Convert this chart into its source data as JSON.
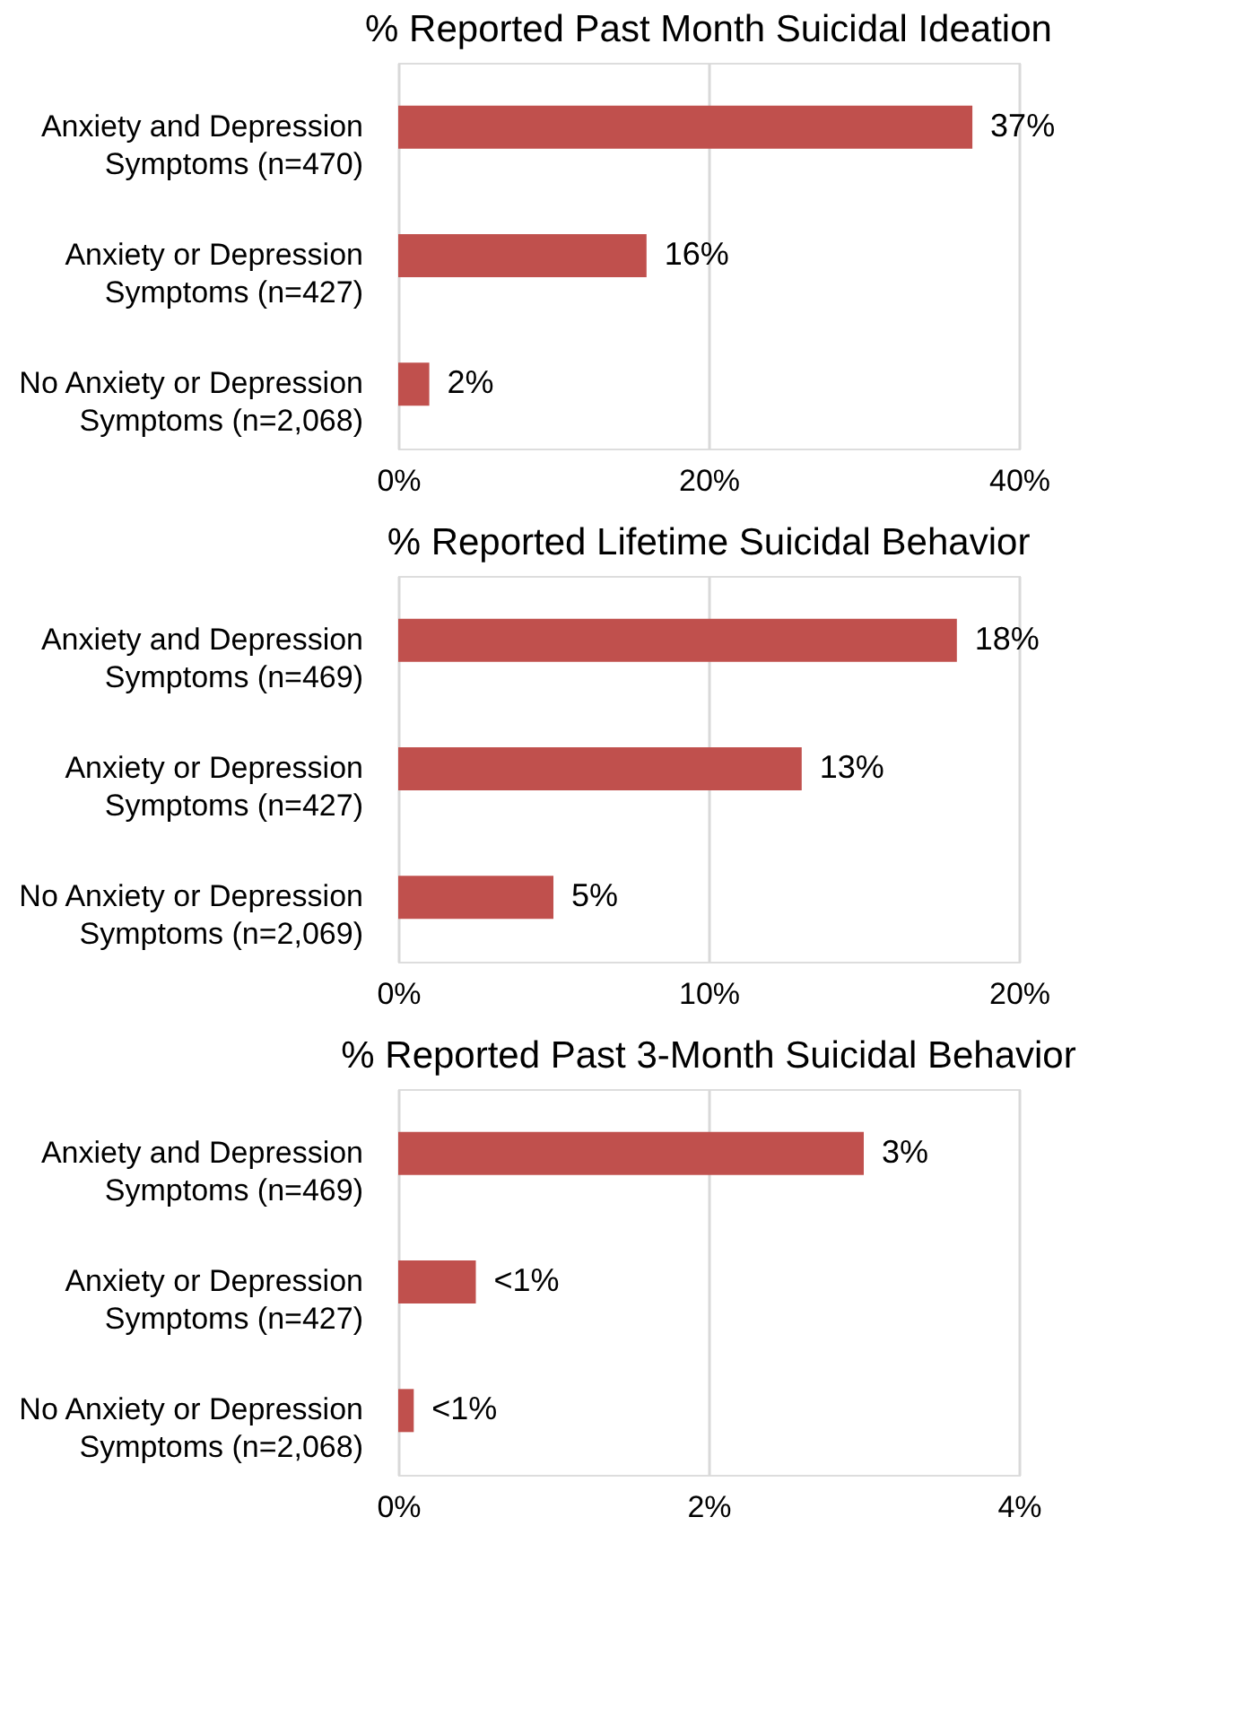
{
  "chart_data": [
    {
      "type": "bar",
      "orientation": "horizontal",
      "title": "% Reported Past Month Suicidal Ideation",
      "categories": [
        "Anxiety and Depression Symptoms (n=470)",
        "Anxiety or Depression Symptoms (n=427)",
        "No Anxiety or Depression Symptoms (n=2,068)"
      ],
      "values": [
        37,
        16,
        2
      ],
      "value_labels": [
        "37%",
        "16%",
        "2%"
      ],
      "color": "#c0504d",
      "xlim": [
        0,
        40
      ],
      "xticks": [
        {
          "value": 0,
          "label": "0%"
        },
        {
          "value": 20,
          "label": "20%"
        },
        {
          "value": 40,
          "label": "40%"
        }
      ],
      "grid": "x"
    },
    {
      "type": "bar",
      "orientation": "horizontal",
      "title": "% Reported Lifetime Suicidal Behavior",
      "categories": [
        "Anxiety and Depression Symptoms (n=469)",
        "Anxiety or Depression Symptoms (n=427)",
        "No Anxiety or Depression Symptoms (n=2,069)"
      ],
      "values": [
        18,
        13,
        5
      ],
      "value_labels": [
        "18%",
        "13%",
        "5%"
      ],
      "color": "#c0504d",
      "xlim": [
        0,
        20
      ],
      "xticks": [
        {
          "value": 0,
          "label": "0%"
        },
        {
          "value": 10,
          "label": "10%"
        },
        {
          "value": 20,
          "label": "20%"
        }
      ],
      "grid": "x"
    },
    {
      "type": "bar",
      "orientation": "horizontal",
      "title": "% Reported Past 3-Month Suicidal Behavior",
      "categories": [
        "Anxiety and Depression Symptoms (n=469)",
        "Anxiety or Depression Symptoms (n=427)",
        "No Anxiety or Depression Symptoms (n=2,068)"
      ],
      "values": [
        3,
        0.5,
        0.1
      ],
      "value_labels": [
        "3%",
        "<1%",
        "<1%"
      ],
      "color": "#c0504d",
      "xlim": [
        0,
        4
      ],
      "xticks": [
        {
          "value": 0,
          "label": "0%"
        },
        {
          "value": 2,
          "label": "2%"
        },
        {
          "value": 4,
          "label": "4%"
        }
      ],
      "grid": "x"
    }
  ]
}
